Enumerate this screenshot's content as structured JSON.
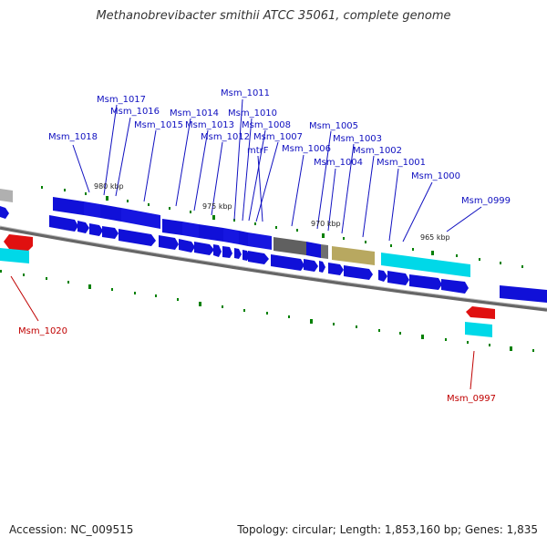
{
  "title": "Methanobrevibacter smithii ATCC 35061, complete genome",
  "footer": {
    "accession": "Accession: NC_009515",
    "topology": "Topology: circular; Length: 1,853,160 bp; Genes: 1,835"
  },
  "colors": {
    "forward_gene": "#1010d8",
    "rrna": "#00d8e8",
    "reverse_highlight": "#e01010",
    "grey_gene": "#606060",
    "olive_gene": "#b8a860",
    "light_grey_gene": "#b0b0b0",
    "label_blue": "#1010c0",
    "label_red": "#c00000",
    "tick_green": "#008000"
  },
  "scale_labels": [
    "980 kbp",
    "975 kbp",
    "970 kbp",
    "965 kbp"
  ],
  "gene_labels": [
    {
      "text": "Msm_1018",
      "color": "blue"
    },
    {
      "text": "Msm_1017",
      "color": "blue"
    },
    {
      "text": "Msm_1016",
      "color": "blue"
    },
    {
      "text": "Msm_1015",
      "color": "blue"
    },
    {
      "text": "Msm_1014",
      "color": "blue"
    },
    {
      "text": "Msm_1013",
      "color": "blue"
    },
    {
      "text": "Msm_1012",
      "color": "blue"
    },
    {
      "text": "Msm_1011",
      "color": "blue"
    },
    {
      "text": "Msm_1010",
      "color": "blue"
    },
    {
      "text": "Msm_1008",
      "color": "blue"
    },
    {
      "text": "Msm_1007",
      "color": "blue"
    },
    {
      "text": "mtrF",
      "color": "blue"
    },
    {
      "text": "Msm_1006",
      "color": "blue"
    },
    {
      "text": "Msm_1005",
      "color": "blue"
    },
    {
      "text": "Msm_1004",
      "color": "blue"
    },
    {
      "text": "Msm_1003",
      "color": "blue"
    },
    {
      "text": "Msm_1002",
      "color": "blue"
    },
    {
      "text": "Msm_1001",
      "color": "blue"
    },
    {
      "text": "Msm_1000",
      "color": "blue"
    },
    {
      "text": "Msm_0999",
      "color": "blue"
    },
    {
      "text": "Msm_1020",
      "color": "red"
    },
    {
      "text": "Msm_0997",
      "color": "red"
    }
  ]
}
